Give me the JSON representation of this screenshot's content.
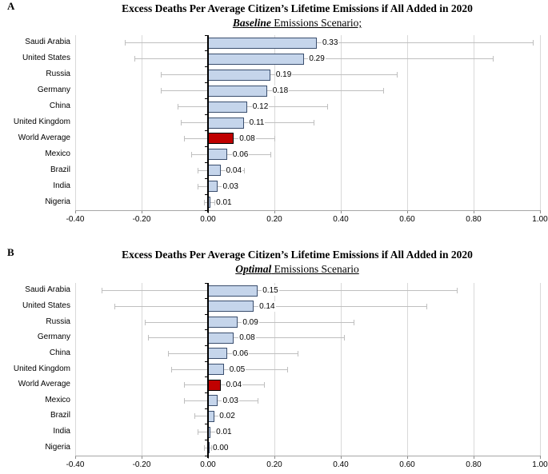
{
  "style": {
    "bar_fill": "#C5D5EB",
    "bar_border": "#3A4E6E",
    "highlight_fill": "#C00000",
    "highlight_border": "#000000",
    "error_bar_color": "#BFBFBF",
    "gridline_color": "#D9D9D9",
    "axis_line_color": "#A6A6A6",
    "category_axis_color": "#000000",
    "text_color": "#000000",
    "background": "#FFFFFF"
  },
  "chart_data": [
    {
      "type": "bar",
      "orientation": "horizontal",
      "panel_label": "A",
      "title": "Excess Deaths Per Average Citizen’s Lifetime Emissions if All Added in 2020",
      "subtitle_emphasis": "Baseline",
      "subtitle_rest": " Emissions Scenario;",
      "categories": [
        "Saudi Arabia",
        "United States",
        "Russia",
        "Germany",
        "China",
        "United Kingdom",
        "World Average",
        "Mexico",
        "Brazil",
        "India",
        "Nigeria"
      ],
      "values": [
        0.33,
        0.29,
        0.19,
        0.18,
        0.12,
        0.11,
        0.08,
        0.06,
        0.04,
        0.03,
        0.01
      ],
      "value_labels": [
        "0.33",
        "0.29",
        "0.19",
        "0.18",
        "0.12",
        "0.11",
        "0.08",
        "0.06",
        "0.04",
        "0.03",
        "0.01"
      ],
      "error_low": [
        -0.25,
        -0.22,
        -0.14,
        -0.14,
        -0.09,
        -0.08,
        -0.07,
        -0.05,
        -0.03,
        -0.03,
        -0.01
      ],
      "error_high": [
        0.98,
        0.86,
        0.57,
        0.53,
        0.36,
        0.32,
        0.2,
        0.19,
        0.11,
        0.09,
        0.02
      ],
      "highlight_category": "World Average",
      "xlabel": "",
      "ylabel": "",
      "xlim": [
        -0.4,
        1.0
      ],
      "x_ticks": [
        -0.4,
        -0.2,
        0,
        0.2,
        0.4,
        0.6,
        0.8,
        1.0
      ],
      "x_tick_labels": [
        "-0.40",
        "-0.20",
        "0.00",
        "0.20",
        "0.40",
        "0.60",
        "0.80",
        "1.00"
      ],
      "grid": true,
      "legend": false
    },
    {
      "type": "bar",
      "orientation": "horizontal",
      "panel_label": "B",
      "title": "Excess Deaths Per Average Citizen’s Lifetime Emissions if All Added in 2020",
      "subtitle_emphasis": "Optimal",
      "subtitle_rest": " Emissions Scenario",
      "categories": [
        "Saudi Arabia",
        "United States",
        "Russia",
        "Germany",
        "China",
        "United Kingdom",
        "World Average",
        "Mexico",
        "Brazil",
        "India",
        "Nigeria"
      ],
      "values": [
        0.15,
        0.14,
        0.09,
        0.08,
        0.06,
        0.05,
        0.04,
        0.03,
        0.02,
        0.01,
        0.0
      ],
      "value_labels": [
        "0.15",
        "0.14",
        "0.09",
        "0.08",
        "0.06",
        "0.05",
        "0.04",
        "0.03",
        "0.02",
        "0.01",
        "0.00"
      ],
      "error_low": [
        -0.32,
        -0.28,
        -0.19,
        -0.18,
        -0.12,
        -0.11,
        -0.07,
        -0.07,
        -0.04,
        -0.03,
        -0.01
      ],
      "error_high": [
        0.75,
        0.66,
        0.44,
        0.41,
        0.27,
        0.24,
        0.17,
        0.15,
        0.08,
        0.06,
        0.01
      ],
      "highlight_category": "World Average",
      "xlabel": "",
      "ylabel": "",
      "xlim": [
        -0.4,
        1.0
      ],
      "x_ticks": [
        -0.4,
        -0.2,
        0,
        0.2,
        0.4,
        0.6,
        0.8,
        1.0
      ],
      "x_tick_labels": [
        "-0.40",
        "-0.20",
        "0.00",
        "0.20",
        "0.40",
        "0.60",
        "0.80",
        "1.00"
      ],
      "grid": true,
      "legend": false
    }
  ]
}
